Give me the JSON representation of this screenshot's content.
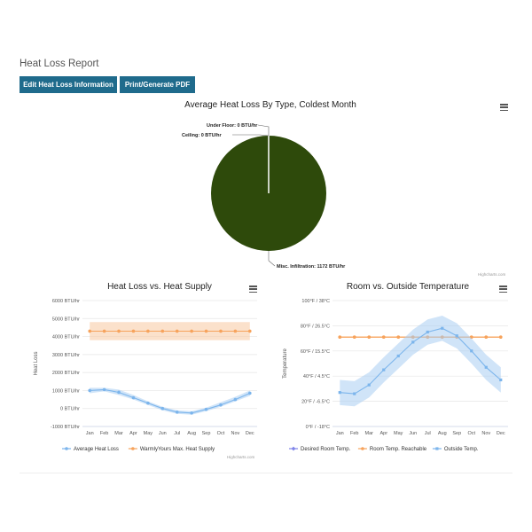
{
  "page": {
    "title": "Heat Loss Report",
    "buttons": {
      "edit": "Edit Heat Loss Information",
      "print": "Print/Generate PDF"
    },
    "credit": "Highcharts.com"
  },
  "colors": {
    "button": "#1f6b8c",
    "pie": "#2e4a0b",
    "blue": "#7cb5ec",
    "blueband": "#a9cdf2",
    "orange": "#f7a35c",
    "orangeband": "#f8c9a0",
    "purple": "#8085e9"
  },
  "chart_data": [
    {
      "type": "pie",
      "title": "Average Heat Loss By Type, Coldest Month",
      "slices": [
        {
          "label": "Under Floor: 0 BTU/hr",
          "value": 0
        },
        {
          "label": "Ceiling: 0 BTU/hr",
          "value": 0
        },
        {
          "label": "Misc. Infiltration: 1172 BTU/hr",
          "value": 1172
        }
      ]
    },
    {
      "type": "line",
      "title": "Heat Loss vs. Heat Supply",
      "ylabel": "Heat Loss",
      "ylim": [
        -1000,
        6000
      ],
      "yticks": [
        "-1000 BTU/hr",
        "0 BTU/hr",
        "1000 BTU/hr",
        "2000 BTU/hr",
        "3000 BTU/hr",
        "4000 BTU/hr",
        "5000 BTU/hr",
        "6000 BTU/hr"
      ],
      "categories": [
        "Jan",
        "Feb",
        "Mar",
        "Apr",
        "May",
        "Jun",
        "Jul",
        "Aug",
        "Sep",
        "Oct",
        "Nov",
        "Dec"
      ],
      "series": [
        {
          "name": "Average Heat Loss",
          "values": [
            1000,
            1050,
            900,
            600,
            300,
            0,
            -200,
            -250,
            -50,
            200,
            500,
            850
          ],
          "low": [
            850,
            950,
            750,
            500,
            200,
            -100,
            -300,
            -350,
            -150,
            100,
            400,
            700
          ],
          "high": [
            1150,
            1150,
            1050,
            750,
            400,
            100,
            -100,
            -150,
            50,
            350,
            650,
            1000
          ]
        },
        {
          "name": "WarmlyYours Max. Heat Supply",
          "values": [
            4300,
            4300,
            4300,
            4300,
            4300,
            4300,
            4300,
            4300,
            4300,
            4300,
            4300,
            4300
          ],
          "low": [
            3800,
            3800,
            3800,
            3800,
            3800,
            3800,
            3800,
            3800,
            3800,
            3800,
            3800,
            3800
          ],
          "high": [
            4800,
            4800,
            4800,
            4800,
            4800,
            4800,
            4800,
            4800,
            4800,
            4800,
            4800,
            4800
          ]
        }
      ]
    },
    {
      "type": "line",
      "title": "Room vs. Outside Temperature",
      "ylabel": "Temperature",
      "ylim": [
        0,
        100
      ],
      "yticks": [
        "0°F / -18°C",
        "20°F / -6.5°C",
        "40°F / 4.5°C",
        "60°F / 15.5°C",
        "80°F / 26.5°C",
        "100°F / 38°C"
      ],
      "categories": [
        "Jan",
        "Feb",
        "Mar",
        "Apr",
        "May",
        "Jun",
        "Jul",
        "Aug",
        "Sep",
        "Oct",
        "Nov",
        "Dec"
      ],
      "series": [
        {
          "name": "Desired Room Temp.",
          "values": [
            71,
            71,
            71,
            71,
            71,
            71,
            71,
            71,
            71,
            71,
            71,
            71
          ]
        },
        {
          "name": "Room Temp. Reachable",
          "values": [
            71,
            71,
            71,
            71,
            71,
            71,
            71,
            71,
            71,
            71,
            71,
            71
          ]
        },
        {
          "name": "Outside Temp.",
          "values": [
            27,
            26,
            33,
            45,
            56,
            67,
            75,
            78,
            72,
            60,
            47,
            37
          ],
          "low": [
            17,
            16,
            23,
            35,
            46,
            57,
            65,
            68,
            62,
            50,
            37,
            27
          ],
          "high": [
            37,
            36,
            43,
            55,
            66,
            77,
            85,
            88,
            82,
            70,
            57,
            47
          ]
        }
      ]
    }
  ]
}
